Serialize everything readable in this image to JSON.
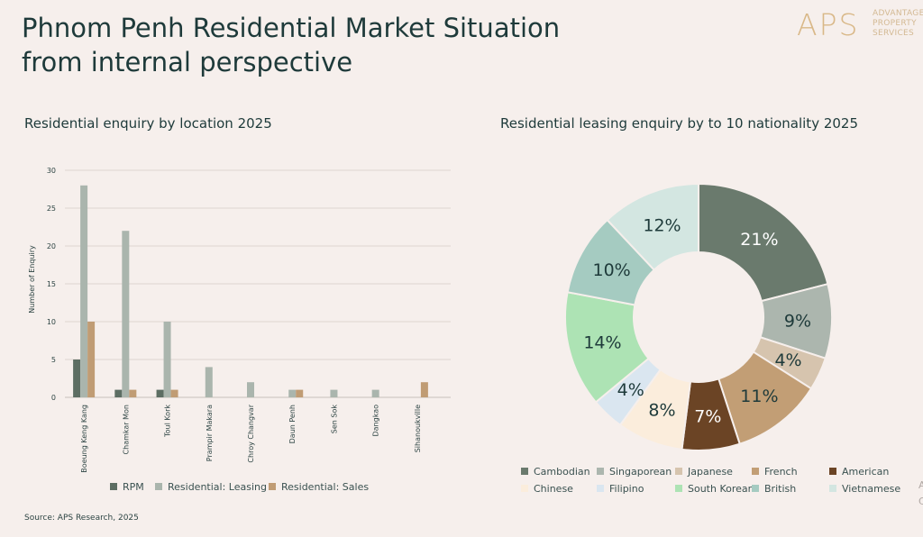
{
  "header": {
    "title_line1": "Phnom Penh Residential Market Situation",
    "title_line2": "from internal perspective",
    "logo_mark": "APS",
    "logo_line1": "ADVANTAGE",
    "logo_line2": "PROPERTY",
    "logo_line3": "SERVICES"
  },
  "source": "Source: APS Research, 2025",
  "edge_fragments": [
    "A",
    "C"
  ],
  "colors": {
    "rpm": "#5d6e63",
    "leasing": "#aab5ad",
    "sales": "#c09c74",
    "grid": "#ddd5d1",
    "axis": "#c8c0bb",
    "background": "#f6efec",
    "label_dark": "#1e3a3a",
    "label_light": "#ffffff"
  },
  "chart_data": [
    {
      "type": "bar",
      "title": "Residential enquiry by location 2025",
      "ylabel": "Number of Enquiry",
      "xlabel": "",
      "ylim": [
        0,
        30
      ],
      "yticks": [
        0,
        5,
        10,
        15,
        20,
        25,
        30
      ],
      "grid": true,
      "legend_position": "bottom",
      "categories": [
        "Boeung Keng Kang",
        "Chamkar Mon",
        "Toul Kork",
        "Prampir Makara",
        "Chroy Changvar",
        "Daun Penh",
        "Sen Sok",
        "Dangkao",
        "Sihanoukville"
      ],
      "series": [
        {
          "name": "RPM",
          "color": "#5d6e63",
          "values": [
            5,
            1,
            1,
            0,
            0,
            0,
            0,
            0,
            0
          ]
        },
        {
          "name": "Residential: Leasing",
          "color": "#aab5ad",
          "values": [
            28,
            22,
            10,
            4,
            2,
            1,
            1,
            1,
            0
          ]
        },
        {
          "name": "Residential: Sales",
          "color": "#c09c74",
          "values": [
            10,
            1,
            1,
            0,
            0,
            1,
            0,
            0,
            2
          ]
        }
      ]
    },
    {
      "type": "pie",
      "donut": true,
      "title": "Residential leasing enquiry by to 10 nationality 2025",
      "legend_position": "bottom",
      "slices": [
        {
          "label": "Cambodian",
          "value": 21,
          "display": "21%",
          "color": "#6a7a6d",
          "text": "light"
        },
        {
          "label": "Singaporean",
          "value": 9,
          "display": "9%",
          "color": "#acb6ae",
          "text": "dark"
        },
        {
          "label": "Japanese",
          "value": 4,
          "display": "4%",
          "color": "#d6c4ae",
          "text": "dark"
        },
        {
          "label": "French",
          "value": 11,
          "display": "11%",
          "color": "#c29e75",
          "text": "dark"
        },
        {
          "label": "American",
          "value": 7,
          "display": "7%",
          "color": "#6b4425",
          "text": "light"
        },
        {
          "label": "Chinese",
          "value": 8,
          "display": "8%",
          "color": "#fbeddc",
          "text": "dark"
        },
        {
          "label": "Filipino",
          "value": 4,
          "display": "4%",
          "color": "#dae6f0",
          "text": "dark"
        },
        {
          "label": "South Korean",
          "value": 14,
          "display": "14%",
          "color": "#ade3b4",
          "text": "dark"
        },
        {
          "label": "British",
          "value": 10,
          "display": "10%",
          "color": "#a5cbc1",
          "text": "dark"
        },
        {
          "label": "Vietnamese",
          "value": 12,
          "display": "12%",
          "color": "#d3e6e1",
          "text": "dark"
        }
      ]
    }
  ]
}
